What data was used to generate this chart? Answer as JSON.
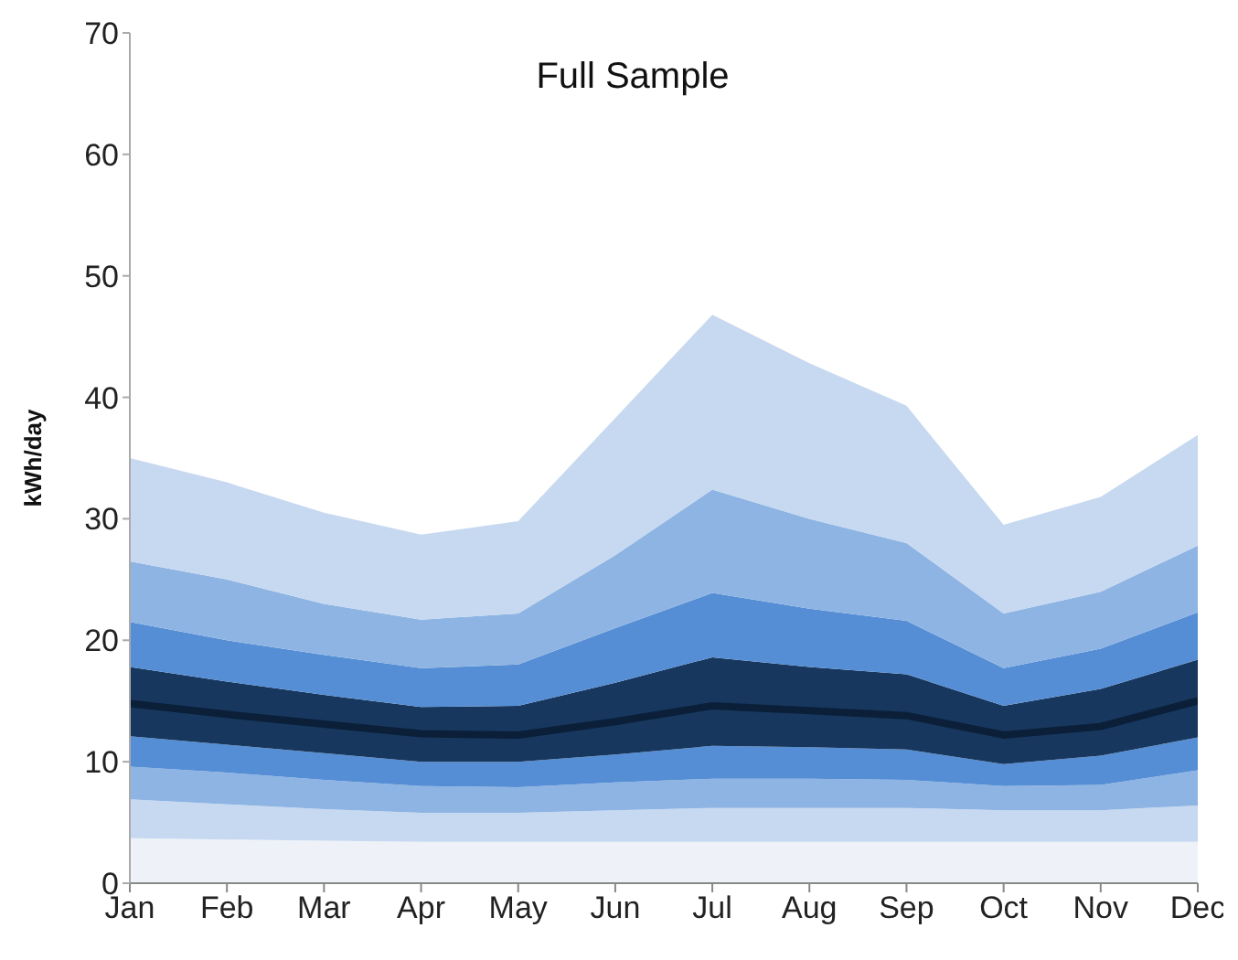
{
  "chart_data": {
    "type": "area",
    "title": "Full Sample",
    "ylabel": "kWh/day",
    "stacked": true,
    "categories": [
      "Jan",
      "Feb",
      "Mar",
      "Apr",
      "May",
      "Jun",
      "Jul",
      "Aug",
      "Sep",
      "Oct",
      "Nov",
      "Dec"
    ],
    "ylim": [
      0,
      70
    ],
    "yticks": [
      0,
      10,
      20,
      30,
      40,
      50,
      60,
      70
    ],
    "series": [
      {
        "color": "#eef2f8",
        "values": [
          3.7,
          3.6,
          3.5,
          3.4,
          3.4,
          3.4,
          3.4,
          3.4,
          3.4,
          3.4,
          3.4,
          3.4
        ]
      },
      {
        "color": "#c6d9f1",
        "values": [
          3.2,
          2.9,
          2.6,
          2.4,
          2.4,
          2.6,
          2.8,
          2.8,
          2.8,
          2.6,
          2.6,
          3.0
        ]
      },
      {
        "color": "#8eb4e3",
        "values": [
          2.7,
          2.6,
          2.4,
          2.2,
          2.1,
          2.3,
          2.4,
          2.4,
          2.3,
          2.0,
          2.1,
          2.9
        ]
      },
      {
        "color": "#558ed5",
        "values": [
          2.5,
          2.3,
          2.2,
          2.0,
          2.1,
          2.3,
          2.7,
          2.6,
          2.5,
          1.8,
          2.4,
          2.7
        ]
      },
      {
        "color": "#17375e",
        "values": [
          5.7,
          5.2,
          4.8,
          4.5,
          4.6,
          5.9,
          7.3,
          6.6,
          6.2,
          4.8,
          5.5,
          6.4
        ]
      },
      {
        "color": "#558ed5",
        "values": [
          3.7,
          3.4,
          3.3,
          3.2,
          3.4,
          4.5,
          5.3,
          4.8,
          4.4,
          3.1,
          3.3,
          3.9
        ]
      },
      {
        "color": "#8eb4e3",
        "values": [
          5,
          5,
          4.2,
          4,
          4.2,
          6,
          8.5,
          7.4,
          6.4,
          4.5,
          4.7,
          5.5
        ]
      },
      {
        "color": "#c6d9f1",
        "values": [
          8.5,
          8,
          7.5,
          7,
          7.6,
          11.3,
          14.4,
          12.8,
          11.3,
          7.3,
          7.8,
          9.1
        ]
      },
      {
        "type": "line",
        "color": "#0b1f38",
        "values": [
          14.8,
          13.9,
          13.1,
          12.3,
          12.2,
          13.3,
          14.6,
          14.2,
          13.8,
          12.2,
          12.9,
          15
        ]
      }
    ]
  }
}
